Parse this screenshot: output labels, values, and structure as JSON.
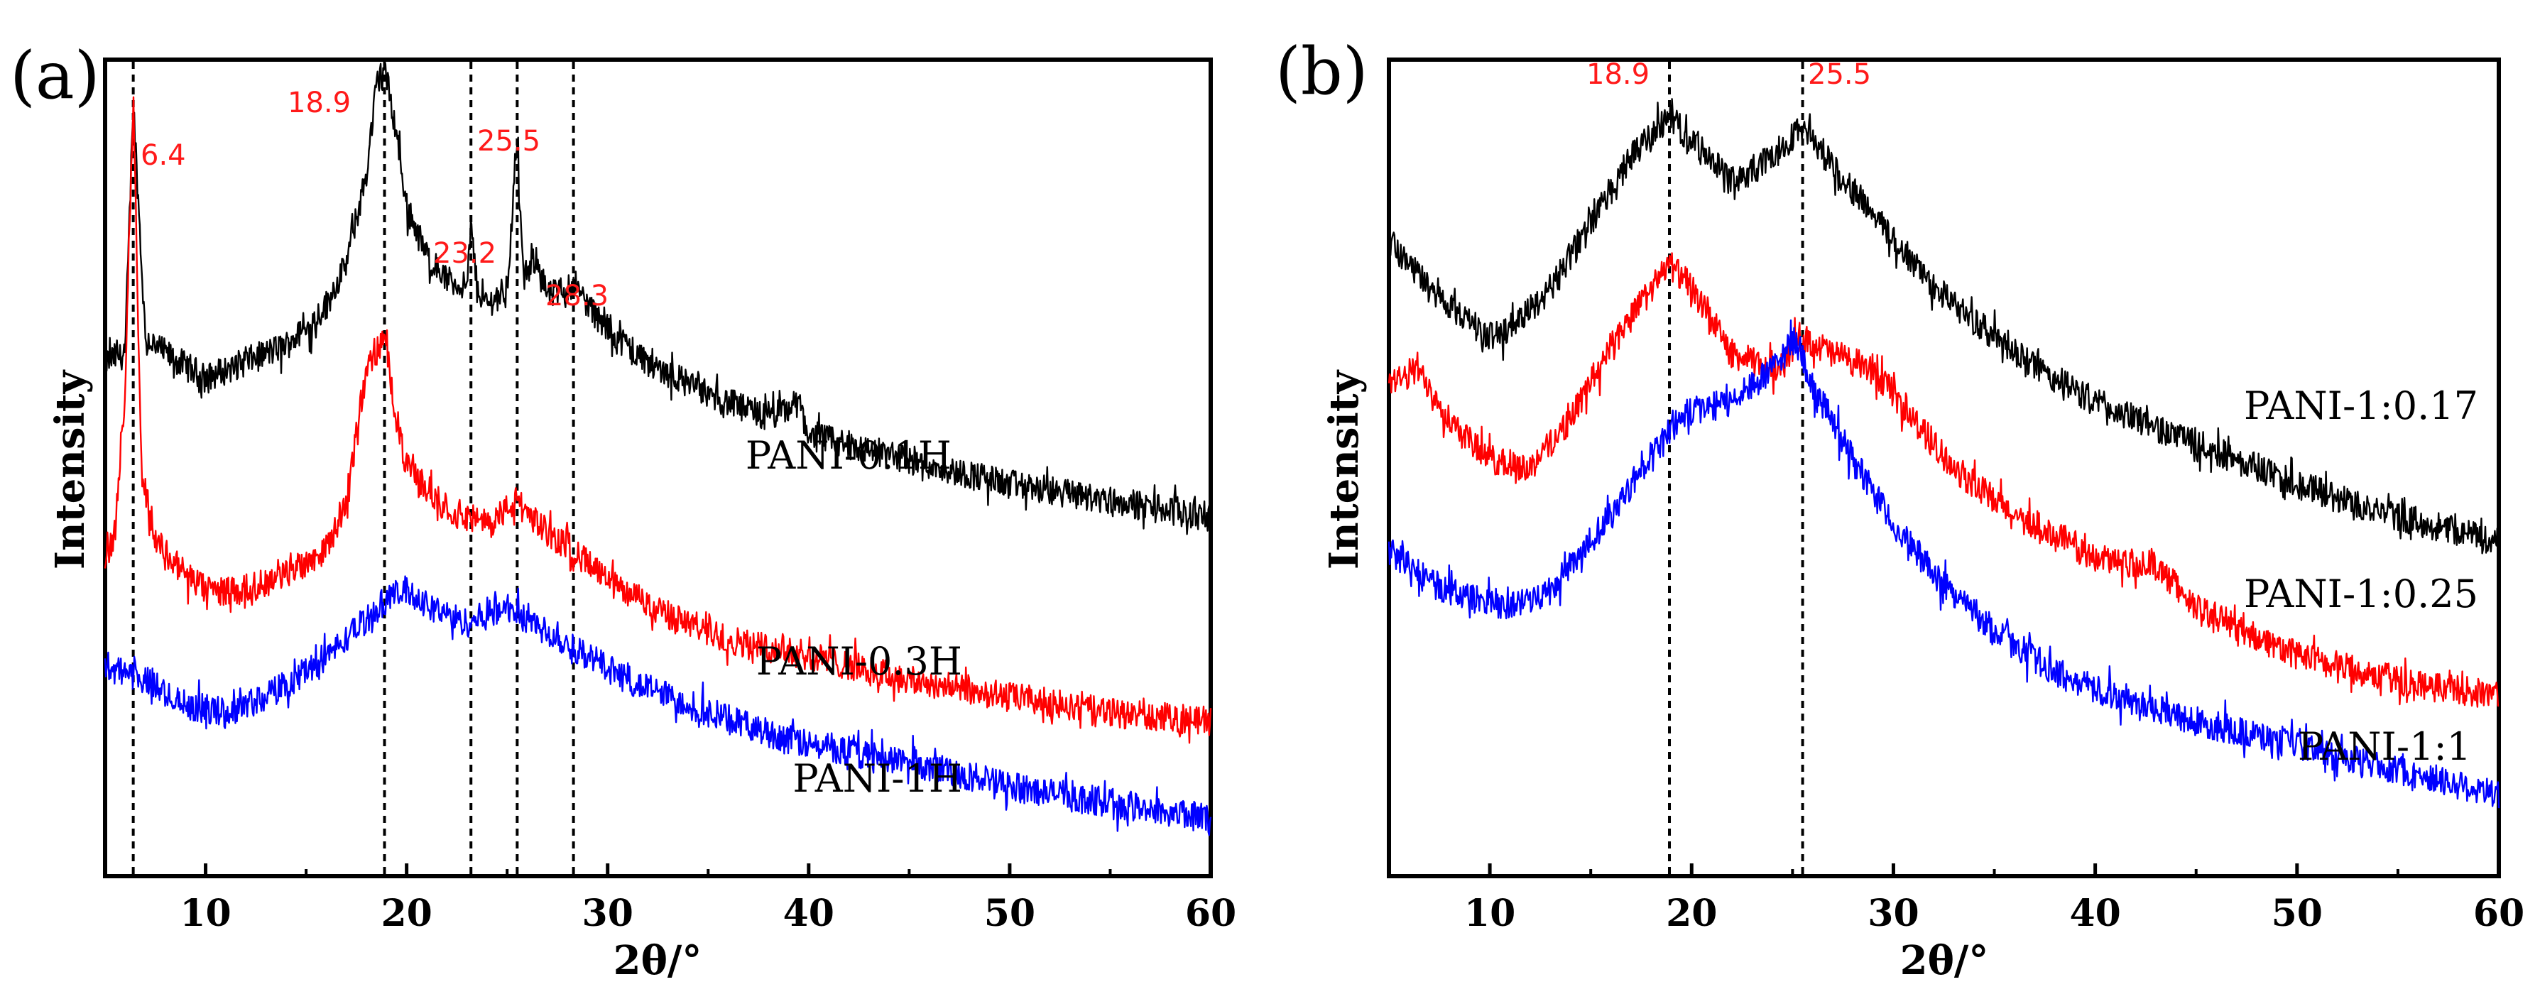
{
  "chart_data": [
    {
      "panel": "(a)",
      "type": "line",
      "xlabel": "2θ/°",
      "ylabel": "Intensity",
      "xlim": [
        5,
        60
      ],
      "xticks": [
        "10",
        "20",
        "30",
        "40",
        "50",
        "60"
      ],
      "xtick_values": [
        10,
        20,
        30,
        40,
        50,
        60
      ],
      "yticks_shown": false,
      "grid": false,
      "legend": "inline labels at right",
      "reference_lines": [
        6.4,
        18.9,
        23.2,
        25.5,
        28.3
      ],
      "peak_labels": [
        {
          "text": "6.4",
          "x": 6.4
        },
        {
          "text": "18.9",
          "x": 18.9
        },
        {
          "text": "25.5",
          "x": 25.5
        },
        {
          "text": "23.2",
          "x": 23.2
        },
        {
          "text": "28.3",
          "x": 28.3
        }
      ],
      "series": [
        {
          "name": "PANI-0.1H",
          "color": "#000000",
          "x": [
            5,
            6.0,
            6.4,
            7.0,
            8,
            10,
            12,
            14,
            15,
            16,
            17,
            18,
            18.5,
            18.9,
            19.5,
            20,
            21,
            22,
            23,
            23.2,
            23.5,
            24,
            25,
            25.5,
            25.8,
            26.5,
            27,
            28,
            28.3,
            29,
            30,
            32,
            35,
            38,
            39.5,
            40,
            45,
            50,
            55,
            60
          ],
          "y": [
            0.63,
            0.64,
            0.95,
            0.66,
            0.64,
            0.61,
            0.63,
            0.65,
            0.67,
            0.7,
            0.75,
            0.86,
            0.97,
            0.99,
            0.91,
            0.82,
            0.76,
            0.73,
            0.72,
            0.8,
            0.72,
            0.7,
            0.72,
            0.9,
            0.73,
            0.76,
            0.71,
            0.72,
            0.73,
            0.7,
            0.67,
            0.63,
            0.59,
            0.56,
            0.58,
            0.54,
            0.51,
            0.48,
            0.46,
            0.44
          ]
        },
        {
          "name": "PANI-0.3H",
          "color": "#ff0000",
          "x": [
            5,
            5.5,
            6.0,
            6.4,
            6.8,
            7.5,
            9,
            10,
            12,
            14,
            16,
            17,
            18,
            18.9,
            19.5,
            20,
            22,
            24,
            25.5,
            27,
            28.3,
            30,
            33,
            36,
            40,
            45,
            50,
            55,
            60
          ],
          "y": [
            0.39,
            0.42,
            0.6,
            0.96,
            0.5,
            0.41,
            0.37,
            0.35,
            0.35,
            0.37,
            0.4,
            0.46,
            0.62,
            0.66,
            0.56,
            0.5,
            0.45,
            0.43,
            0.46,
            0.42,
            0.4,
            0.36,
            0.32,
            0.29,
            0.27,
            0.24,
            0.22,
            0.2,
            0.19
          ]
        },
        {
          "name": "PANI-1H",
          "color": "#0000ff",
          "x": [
            5,
            7,
            9,
            11,
            13,
            15,
            17,
            19,
            20,
            21,
            23,
            25,
            27,
            29,
            31,
            33,
            35,
            40,
            45,
            50,
            55,
            60
          ],
          "y": [
            0.26,
            0.24,
            0.21,
            0.2,
            0.22,
            0.25,
            0.29,
            0.34,
            0.35,
            0.33,
            0.31,
            0.33,
            0.3,
            0.27,
            0.24,
            0.22,
            0.2,
            0.16,
            0.14,
            0.11,
            0.09,
            0.07
          ]
        }
      ]
    },
    {
      "panel": "(b)",
      "type": "line",
      "xlabel": "2θ/°",
      "ylabel": "Intensity",
      "xlim": [
        5,
        60
      ],
      "xticks": [
        "10",
        "20",
        "30",
        "40",
        "50",
        "60"
      ],
      "xtick_values": [
        10,
        20,
        30,
        40,
        50,
        60
      ],
      "yticks_shown": false,
      "grid": false,
      "legend": "inline labels at right",
      "reference_lines": [
        18.9,
        25.5
      ],
      "peak_labels": [
        {
          "text": "18.9",
          "x": 18.9
        },
        {
          "text": "25.5",
          "x": 25.5
        }
      ],
      "series": [
        {
          "name": "PANI-1:0.17",
          "color": "#000000",
          "x": [
            5,
            7,
            9,
            10,
            11,
            13,
            15,
            17,
            18.9,
            20,
            22,
            24,
            25.5,
            27,
            29,
            31,
            33,
            36,
            40,
            45,
            50,
            55,
            60
          ],
          "y": [
            0.78,
            0.72,
            0.68,
            0.66,
            0.67,
            0.72,
            0.8,
            0.88,
            0.93,
            0.9,
            0.85,
            0.88,
            0.92,
            0.87,
            0.81,
            0.75,
            0.7,
            0.64,
            0.58,
            0.53,
            0.48,
            0.44,
            0.41
          ]
        },
        {
          "name": "PANI-1:0.25",
          "color": "#ff0000",
          "x": [
            5,
            6.5,
            8,
            10,
            12,
            14,
            16,
            18.9,
            20,
            22,
            24,
            25.5,
            27,
            29,
            31,
            33,
            36,
            40,
            43,
            45,
            50,
            55,
            60
          ],
          "y": [
            0.6,
            0.62,
            0.56,
            0.51,
            0.5,
            0.56,
            0.65,
            0.75,
            0.72,
            0.64,
            0.62,
            0.66,
            0.64,
            0.62,
            0.56,
            0.5,
            0.44,
            0.39,
            0.38,
            0.33,
            0.27,
            0.24,
            0.22
          ]
        },
        {
          "name": "PANI-1:1",
          "color": "#0000ff",
          "x": [
            5,
            7,
            9,
            11,
            13,
            15,
            17,
            19,
            20,
            22,
            24,
            25.2,
            26,
            28,
            30,
            32,
            35,
            38,
            40,
            45,
            50,
            55,
            60
          ],
          "y": [
            0.4,
            0.36,
            0.34,
            0.33,
            0.35,
            0.41,
            0.48,
            0.55,
            0.57,
            0.58,
            0.62,
            0.66,
            0.6,
            0.51,
            0.43,
            0.37,
            0.3,
            0.25,
            0.23,
            0.19,
            0.16,
            0.13,
            0.1
          ]
        }
      ]
    }
  ]
}
